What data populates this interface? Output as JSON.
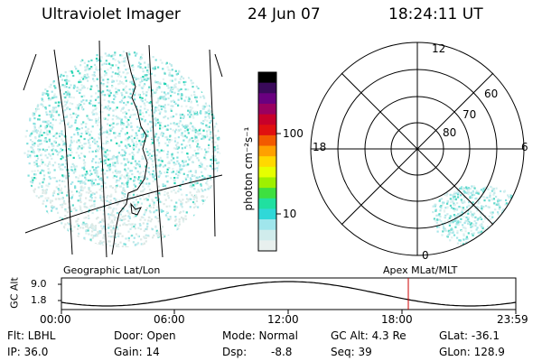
{
  "header": {
    "title": "Ultraviolet Imager",
    "date": "24 Jun 07",
    "time": "18:24:11 UT"
  },
  "colorbar": {
    "unit_label": "photon cm⁻²s⁻¹",
    "ticks": [
      "100",
      "10"
    ],
    "colors": [
      "#000000",
      "#3a0a5a",
      "#6a0080",
      "#9a0060",
      "#c8002a",
      "#e01010",
      "#f25a00",
      "#ffa000",
      "#ffd800",
      "#e6ff00",
      "#9ef000",
      "#3ee040",
      "#20e0a0",
      "#30d8d8",
      "#a0e6ec",
      "#d0ecec",
      "#e8f0ee"
    ]
  },
  "geo_panel": {
    "caption": "Geographic Lat/Lon"
  },
  "polar_panel": {
    "caption": "Apex MLat/MLT",
    "mlt_labels": {
      "top": "12",
      "left": "18",
      "right": "6",
      "bottom": "0"
    },
    "lat_labels": [
      "60",
      "70",
      "80"
    ]
  },
  "altitude_plot": {
    "ylabel": "GC Alt",
    "yticks": [
      "9.0",
      "1.8"
    ],
    "xticks": [
      "00:00",
      "06:00",
      "12:00",
      "18:00",
      "23:59"
    ],
    "current_time_marker_color": "#cc0000"
  },
  "info": {
    "row1": [
      "Flt: LBHL",
      "Door: Open",
      "Mode: Normal",
      "GC Alt: 4.3 Re",
      "GLat: -36.1"
    ],
    "row2": [
      "IP: 36.0",
      "Gain: 14",
      "Dsp:",
      "-8.8",
      "Seq: 39",
      "GLon: 128.9"
    ]
  }
}
